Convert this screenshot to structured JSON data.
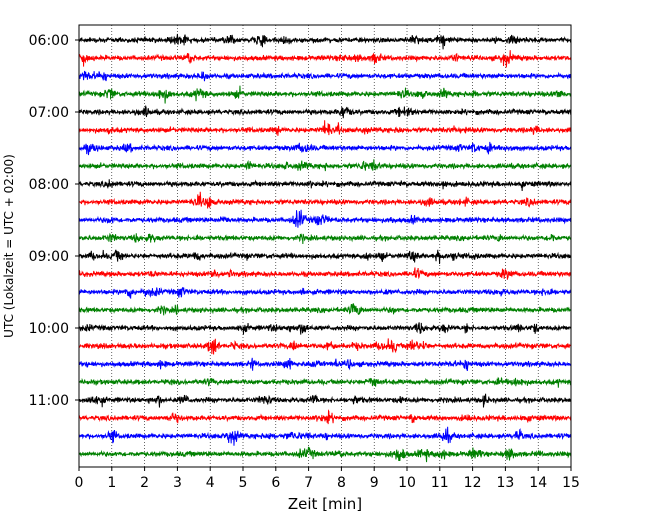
{
  "chart_data": {
    "type": "line",
    "title": "",
    "xlabel": "Zeit  [min]",
    "ylabel": "UTC (Lokalzeit = UTC + 02:00)",
    "xlim": [
      0,
      15
    ],
    "x_ticks": [
      "0",
      "1",
      "2",
      "3",
      "4",
      "5",
      "6",
      "7",
      "8",
      "9",
      "10",
      "11",
      "12",
      "13",
      "14",
      "15"
    ],
    "y_tick_labels": [
      "06:00",
      "07:00",
      "08:00",
      "09:00",
      "10:00",
      "11:00"
    ],
    "grid": "vertical dotted",
    "row_interval_minutes": 15,
    "rows": [
      {
        "label": "06:00",
        "color": "#000000"
      },
      {
        "label": "06:15",
        "color": "#ff0000"
      },
      {
        "label": "06:30",
        "color": "#0000ff"
      },
      {
        "label": "06:45",
        "color": "#008000"
      },
      {
        "label": "07:00",
        "color": "#000000"
      },
      {
        "label": "07:15",
        "color": "#ff0000"
      },
      {
        "label": "07:30",
        "color": "#0000ff"
      },
      {
        "label": "07:45",
        "color": "#008000"
      },
      {
        "label": "08:00",
        "color": "#000000"
      },
      {
        "label": "08:15",
        "color": "#ff0000"
      },
      {
        "label": "08:30",
        "color": "#0000ff"
      },
      {
        "label": "08:45",
        "color": "#008000"
      },
      {
        "label": "09:00",
        "color": "#000000"
      },
      {
        "label": "09:15",
        "color": "#ff0000"
      },
      {
        "label": "09:30",
        "color": "#0000ff"
      },
      {
        "label": "09:45",
        "color": "#008000"
      },
      {
        "label": "10:00",
        "color": "#000000"
      },
      {
        "label": "10:15",
        "color": "#ff0000"
      },
      {
        "label": "10:30",
        "color": "#0000ff"
      },
      {
        "label": "10:45",
        "color": "#008000"
      },
      {
        "label": "11:00",
        "color": "#000000"
      },
      {
        "label": "11:15",
        "color": "#ff0000"
      },
      {
        "label": "11:30",
        "color": "#0000ff"
      },
      {
        "label": "11:45",
        "color": "#008000"
      }
    ]
  }
}
